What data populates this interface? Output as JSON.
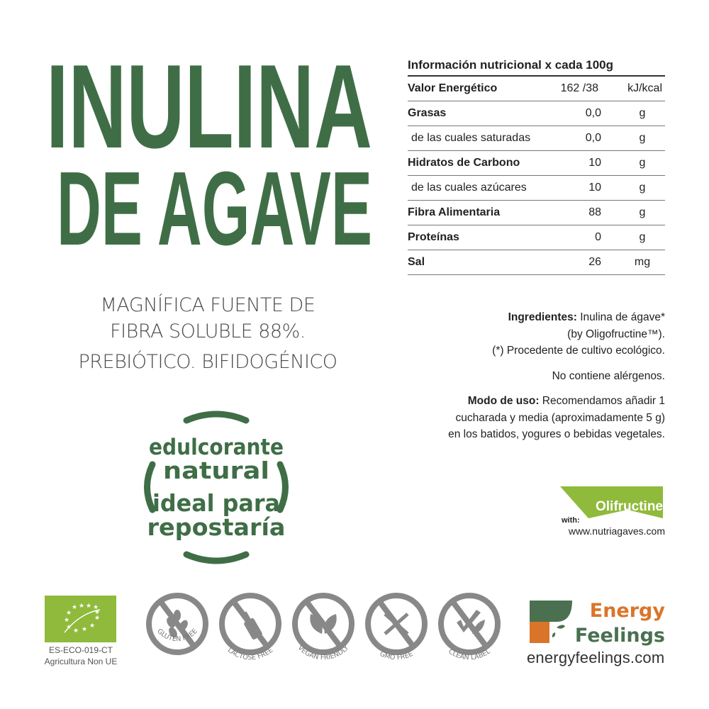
{
  "product": {
    "title_line1": "INULINA",
    "title_line2": "DE AGAVE",
    "subtitle_lines": [
      "MAGNÍFICA FUENTE DE",
      "FIBRA SOLUBLE 88%.",
      "PREBIÓTICO. BIFIDOGÉNICO"
    ],
    "brand_color": "#3f6e46"
  },
  "badge": {
    "lines": [
      "edulcorante",
      "natural",
      "ideal para",
      "repostaría"
    ]
  },
  "nutrition": {
    "title": "Información nutricional x cada 100g",
    "rows": [
      {
        "name": "Valor Energético",
        "value": "162 /38",
        "unit": "kJ/kcal",
        "bold": true
      },
      {
        "name": "Grasas",
        "value": "0,0",
        "unit": "g",
        "bold": true
      },
      {
        "name": "de las cuales saturadas",
        "value": "0,0",
        "unit": "g",
        "bold": false
      },
      {
        "name": "Hidratos de Carbono",
        "value": "10",
        "unit": "g",
        "bold": true
      },
      {
        "name": "de las cuales azúcares",
        "value": "10",
        "unit": "g",
        "bold": false
      },
      {
        "name": "Fibra Alimentaria",
        "value": "88",
        "unit": "g",
        "bold": true
      },
      {
        "name": "Proteínas",
        "value": "0",
        "unit": "g",
        "bold": true
      },
      {
        "name": "Sal",
        "value": "26",
        "unit": "mg",
        "bold": true
      }
    ]
  },
  "ingredients": {
    "label": "Ingredientes:",
    "text1": " Inulina de ágave*",
    "text2": "(by Oligofructine™).",
    "text3": "(*) Procedente de cultivo ecológico.",
    "allergens": "No contiene alérgenos.",
    "usage_label": "Modo de uso:",
    "usage_text1": " Recomendamos añadir 1",
    "usage_text2": "cucharada y media (aproximadamente 5 g)",
    "usage_text3": "en los batidos, yogures o bebidas vegetales."
  },
  "olifructine": {
    "name": "Olifructine",
    "with": "with:",
    "url": "www.nutriagaves.com",
    "color": "#8fba3b"
  },
  "eu_organic": {
    "code": "ES-ECO-019-CT",
    "origin": "Agricultura Non UE",
    "color": "#8fba3b"
  },
  "claims": [
    {
      "label": "GLUTEN FREE",
      "icon": "wheat-icon"
    },
    {
      "label": "LACTOSE FREE",
      "icon": "milk-bottle-icon"
    },
    {
      "label": "VEGAN FRIENDLY",
      "icon": "leaves-icon"
    },
    {
      "label": "GMO FREE",
      "icon": "dna-icon"
    },
    {
      "label": "CLEAN LABEL",
      "icon": "check-leaf-icon"
    }
  ],
  "brand": {
    "word1": "Energy",
    "word2": "Feelings",
    "url": "energyfeelings.com",
    "orange": "#d9752a",
    "green": "#4a7050"
  }
}
